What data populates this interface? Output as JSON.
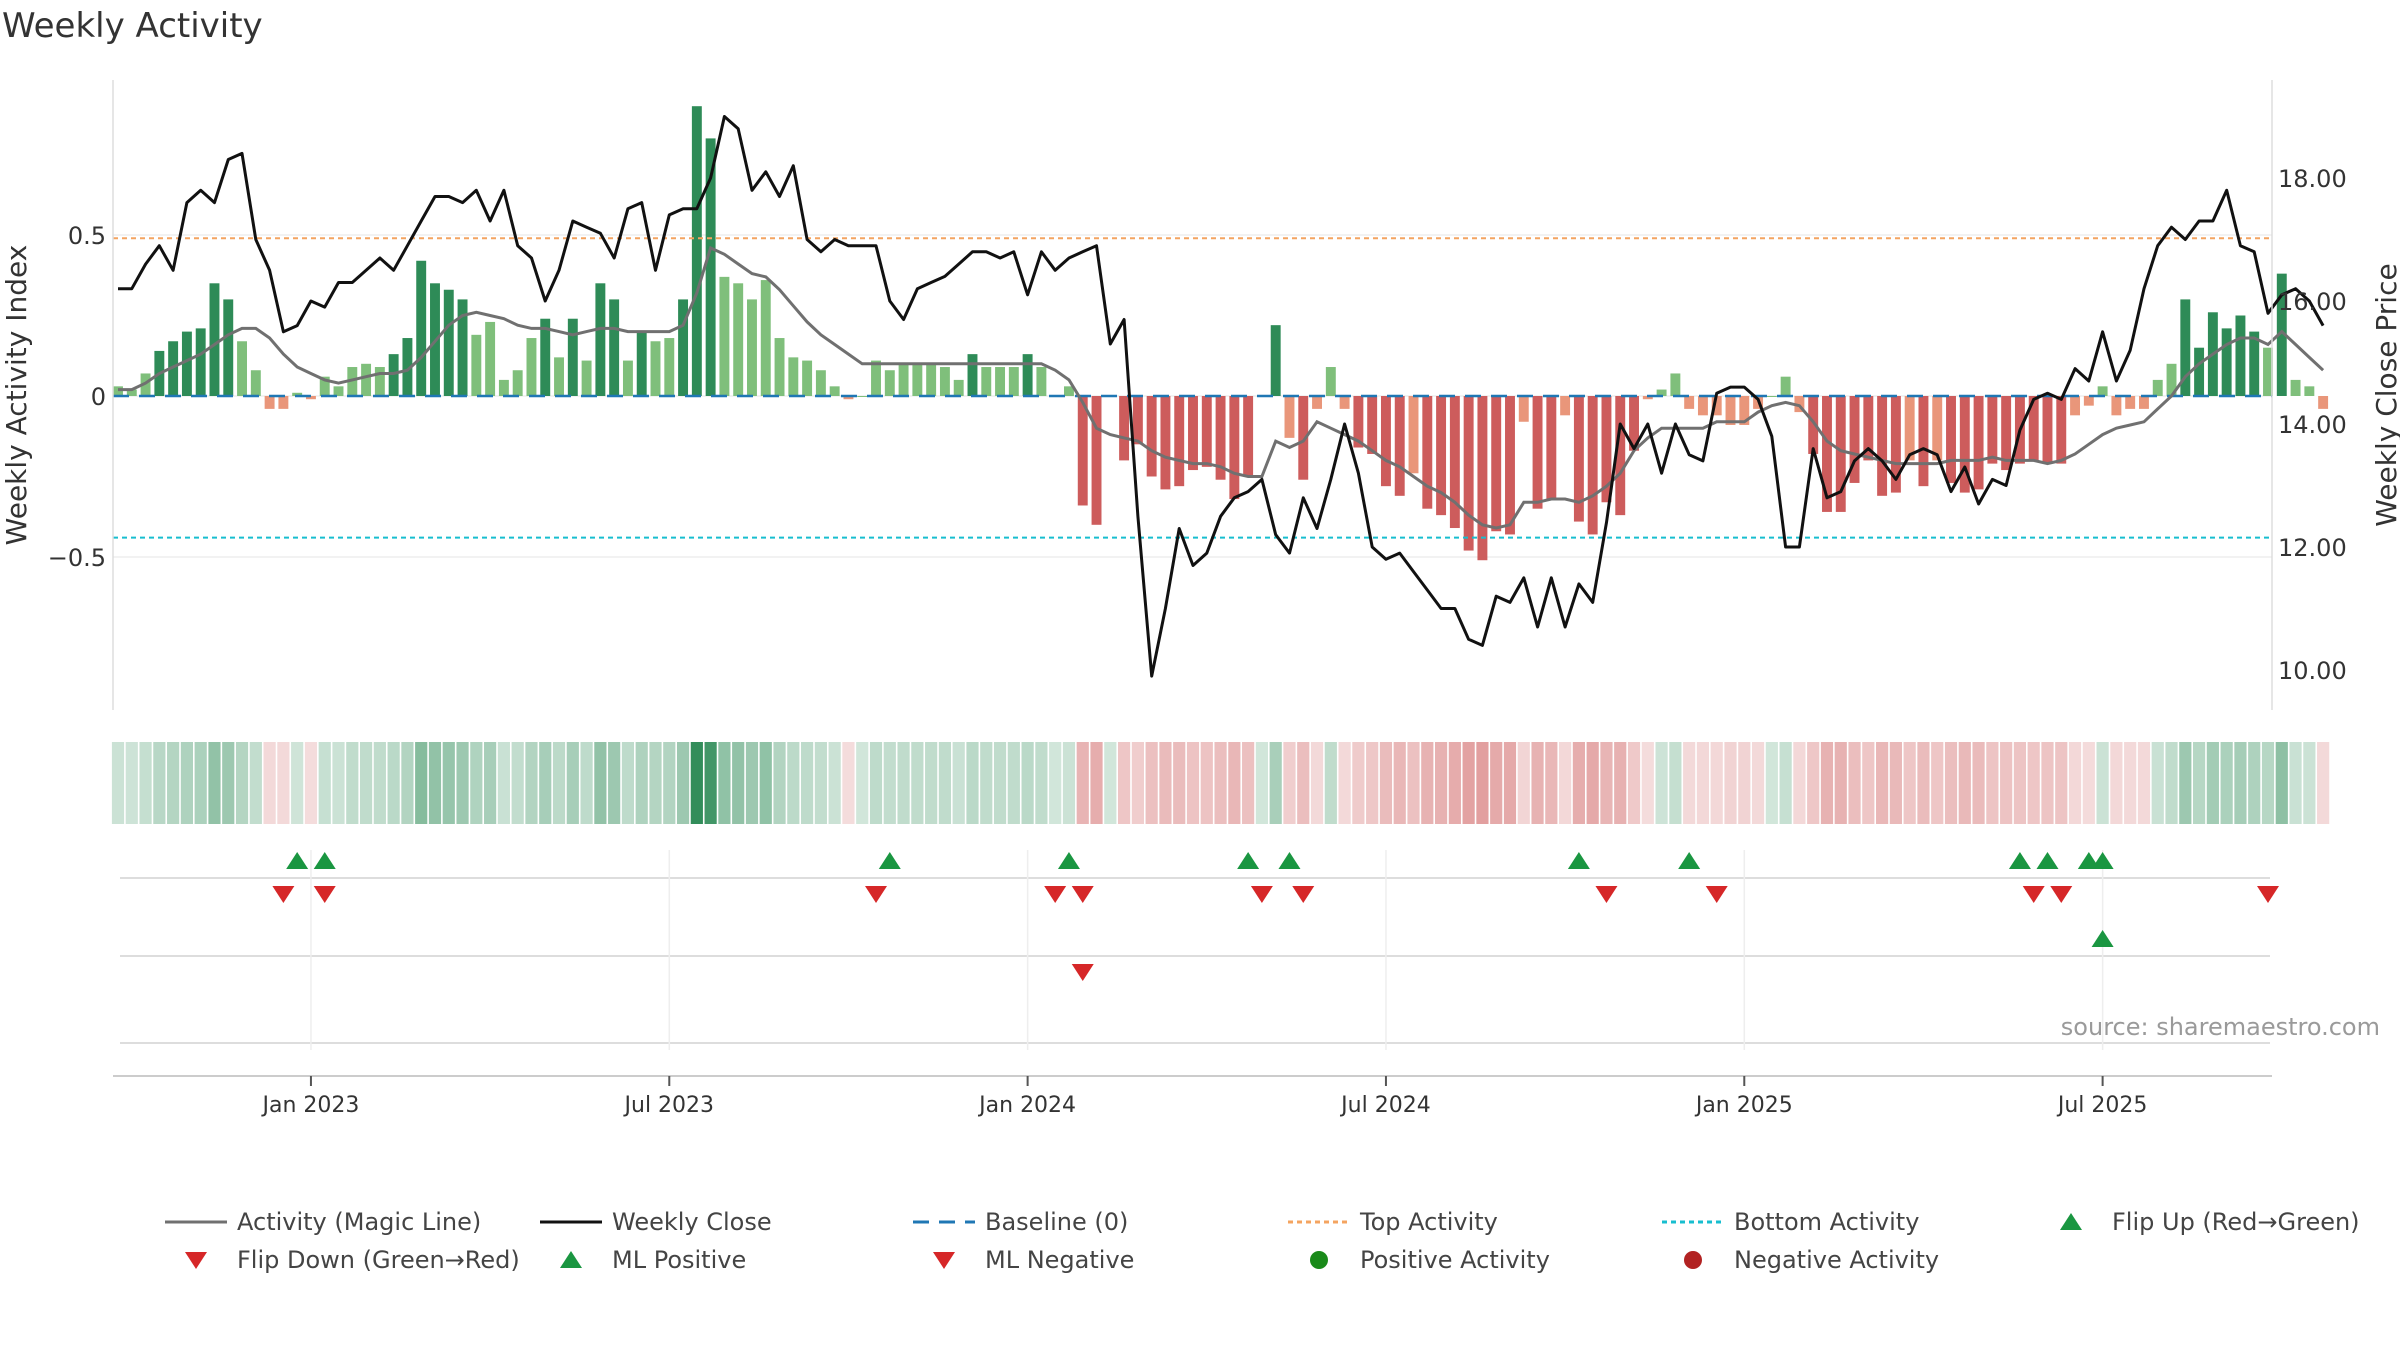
{
  "title": "Weekly Activity",
  "source": "source: sharemaestro.com",
  "colors": {
    "pos_dark": "#2e8b57",
    "pos_light": "#7fbf7b",
    "neg_dark": "#cd5c5c",
    "neg_light": "#e9967a",
    "magic": "#707070",
    "close": "#111111",
    "baseline": "#1f77b4",
    "top": "#f4a460",
    "bottom": "#17becf",
    "flip_up": "#1a9641",
    "flip_down": "#d62728",
    "pos_dot": "#1a8a1a",
    "neg_dot": "#b22222"
  },
  "chart_data": {
    "type": "bar+line",
    "title": "Weekly Activity",
    "ylabel_left": "Weekly Activity Index",
    "ylabel_right": "Weekly Close Price",
    "ylim_left": [
      -0.97,
      1.0
    ],
    "ylim_right": [
      9.0,
      19.4
    ],
    "left_ticks": [
      {
        "v": 0.5,
        "label": "0.5"
      },
      {
        "v": 0,
        "label": "0"
      },
      {
        "v": -0.5,
        "label": "−0.5"
      }
    ],
    "right_ticks": [
      {
        "v": 18,
        "label": "18.00"
      },
      {
        "v": 16,
        "label": "16.00"
      },
      {
        "v": 14,
        "label": "14.00"
      },
      {
        "v": 12,
        "label": "12.00"
      },
      {
        "v": 10,
        "label": "10.00"
      }
    ],
    "x_ticks": [
      {
        "w": 14,
        "label": "Jan 2023"
      },
      {
        "w": 40,
        "label": "Jul 2023"
      },
      {
        "w": 66,
        "label": "Jan 2024"
      },
      {
        "w": 92,
        "label": "Jul 2024"
      },
      {
        "w": 118,
        "label": "Jan 2025"
      },
      {
        "w": 144,
        "label": "Jul 2025"
      }
    ],
    "top_activity": 0.49,
    "bottom_activity": -0.44,
    "baseline": 0,
    "weeks": 157,
    "activity": [
      0.03,
      0.02,
      0.07,
      0.14,
      0.17,
      0.2,
      0.21,
      0.35,
      0.3,
      0.17,
      0.08,
      -0.04,
      -0.04,
      0.01,
      -0.01,
      0.06,
      0.03,
      0.09,
      0.1,
      0.09,
      0.13,
      0.18,
      0.42,
      0.35,
      0.33,
      0.3,
      0.19,
      0.23,
      0.05,
      0.08,
      0.18,
      0.24,
      0.12,
      0.24,
      0.11,
      0.35,
      0.3,
      0.11,
      0.2,
      0.17,
      0.18,
      0.3,
      0.9,
      0.8,
      0.37,
      0.35,
      0.3,
      0.36,
      0.18,
      0.12,
      0.11,
      0.08,
      0.03,
      -0.01,
      0.0,
      0.11,
      0.08,
      0.1,
      0.1,
      0.1,
      0.09,
      0.05,
      0.13,
      0.09,
      0.09,
      0.09,
      0.13,
      0.09,
      0.0,
      0.03,
      -0.34,
      -0.4,
      0.0,
      -0.2,
      -0.15,
      -0.25,
      -0.29,
      -0.28,
      -0.23,
      -0.22,
      -0.26,
      -0.32,
      -0.25,
      0.0,
      0.22,
      -0.13,
      -0.26,
      -0.04,
      0.09,
      -0.04,
      -0.16,
      -0.18,
      -0.28,
      -0.31,
      -0.24,
      -0.35,
      -0.37,
      -0.41,
      -0.48,
      -0.51,
      -0.42,
      -0.43,
      -0.08,
      -0.35,
      -0.32,
      -0.06,
      -0.39,
      -0.43,
      -0.33,
      -0.37,
      -0.17,
      -0.01,
      0.02,
      0.07,
      -0.04,
      -0.06,
      -0.06,
      -0.09,
      -0.09,
      -0.04,
      0.0,
      0.06,
      -0.05,
      -0.18,
      -0.36,
      -0.36,
      -0.27,
      -0.2,
      -0.31,
      -0.3,
      -0.2,
      -0.28,
      -0.2,
      -0.27,
      -0.3,
      -0.29,
      -0.21,
      -0.23,
      -0.21,
      -0.2,
      -0.21,
      -0.21,
      -0.06,
      -0.03,
      0.03,
      -0.06,
      -0.04,
      -0.04,
      0.05,
      0.1,
      0.3,
      0.15,
      0.26,
      0.21,
      0.25,
      0.2,
      0.15,
      0.38,
      0.05,
      0.03,
      -0.04
    ],
    "magic_line": [
      0.02,
      0.02,
      0.04,
      0.07,
      0.09,
      0.11,
      0.13,
      0.16,
      0.19,
      0.21,
      0.21,
      0.18,
      0.13,
      0.09,
      0.07,
      0.05,
      0.04,
      0.05,
      0.06,
      0.07,
      0.07,
      0.08,
      0.12,
      0.17,
      0.22,
      0.25,
      0.26,
      0.25,
      0.24,
      0.22,
      0.21,
      0.21,
      0.2,
      0.19,
      0.2,
      0.21,
      0.21,
      0.2,
      0.2,
      0.2,
      0.2,
      0.22,
      0.32,
      0.46,
      0.44,
      0.41,
      0.38,
      0.37,
      0.33,
      0.28,
      0.23,
      0.19,
      0.16,
      0.13,
      0.1,
      0.1,
      0.1,
      0.1,
      0.1,
      0.1,
      0.1,
      0.1,
      0.1,
      0.1,
      0.1,
      0.1,
      0.1,
      0.1,
      0.08,
      0.05,
      -0.02,
      -0.1,
      -0.12,
      -0.13,
      -0.14,
      -0.17,
      -0.19,
      -0.2,
      -0.21,
      -0.21,
      -0.22,
      -0.24,
      -0.25,
      -0.25,
      -0.14,
      -0.16,
      -0.14,
      -0.08,
      -0.1,
      -0.12,
      -0.14,
      -0.17,
      -0.2,
      -0.22,
      -0.25,
      -0.28,
      -0.3,
      -0.33,
      -0.37,
      -0.4,
      -0.41,
      -0.4,
      -0.33,
      -0.33,
      -0.32,
      -0.32,
      -0.33,
      -0.31,
      -0.28,
      -0.24,
      -0.17,
      -0.13,
      -0.1,
      -0.1,
      -0.1,
      -0.1,
      -0.08,
      -0.08,
      -0.08,
      -0.05,
      -0.03,
      -0.02,
      -0.03,
      -0.08,
      -0.14,
      -0.17,
      -0.18,
      -0.19,
      -0.2,
      -0.21,
      -0.21,
      -0.21,
      -0.21,
      -0.2,
      -0.2,
      -0.2,
      -0.19,
      -0.2,
      -0.2,
      -0.2,
      -0.21,
      -0.2,
      -0.18,
      -0.15,
      -0.12,
      -0.1,
      -0.09,
      -0.08,
      -0.04,
      0.0,
      0.06,
      0.1,
      0.13,
      0.16,
      0.18,
      0.18,
      0.16,
      0.2,
      0.16,
      0.12,
      0.08
    ],
    "weekly_close": [
      16.2,
      16.2,
      16.6,
      16.9,
      16.5,
      17.6,
      17.8,
      17.6,
      18.3,
      18.4,
      17.0,
      16.5,
      15.5,
      15.6,
      16.0,
      15.9,
      16.3,
      16.3,
      16.5,
      16.7,
      16.5,
      16.9,
      17.3,
      17.7,
      17.7,
      17.6,
      17.8,
      17.3,
      17.8,
      16.9,
      16.7,
      16.0,
      16.5,
      17.3,
      17.2,
      17.1,
      16.7,
      17.5,
      17.6,
      16.5,
      17.4,
      17.5,
      17.5,
      18.0,
      19.0,
      18.8,
      17.8,
      18.1,
      17.7,
      18.2,
      17.0,
      16.8,
      17.0,
      16.9,
      16.9,
      16.9,
      16.0,
      15.7,
      16.2,
      16.3,
      16.4,
      16.6,
      16.8,
      16.8,
      16.7,
      16.8,
      16.1,
      16.8,
      16.5,
      16.7,
      16.8,
      16.9,
      15.3,
      15.7,
      12.5,
      9.9,
      11.0,
      12.3,
      11.7,
      11.9,
      12.5,
      12.8,
      12.9,
      13.1,
      12.2,
      11.9,
      12.8,
      12.3,
      13.1,
      14.0,
      13.2,
      12.0,
      11.8,
      11.9,
      11.6,
      11.3,
      11.0,
      11.0,
      10.5,
      10.4,
      11.2,
      11.1,
      11.5,
      10.7,
      11.5,
      10.7,
      11.4,
      11.1,
      12.4,
      14.0,
      13.6,
      14.0,
      13.2,
      14.0,
      13.5,
      13.4,
      14.5,
      14.6,
      14.6,
      14.4,
      13.8,
      12.0,
      12.0,
      13.6,
      12.8,
      12.9,
      13.4,
      13.6,
      13.4,
      13.1,
      13.5,
      13.6,
      13.5,
      12.9,
      13.3,
      12.7,
      13.1,
      13.0,
      13.9,
      14.4,
      14.5,
      14.4,
      14.9,
      14.7,
      15.5,
      14.7,
      15.2,
      16.2,
      16.9,
      17.2,
      17.0,
      17.3,
      17.3,
      17.8,
      16.9,
      16.8,
      15.8,
      16.1,
      16.2,
      16.0,
      15.6
    ],
    "flip_up_weeks": [
      13,
      15,
      56,
      69,
      82,
      85,
      106,
      114,
      138,
      140,
      143,
      144
    ],
    "flip_down_weeks": [
      12,
      15,
      55,
      68,
      70,
      83,
      86,
      108,
      116,
      139,
      141,
      156,
      70
    ]
  },
  "legend": {
    "row1": [
      "Activity (Magic Line)",
      "Weekly Close",
      "Baseline (0)",
      "Top Activity",
      "Bottom Activity",
      "Flip Up (Red→Green)"
    ],
    "row2": [
      "Flip Down (Green→Red)",
      "ML Positive",
      "ML Negative",
      "Positive Activity",
      "Negative Activity"
    ]
  }
}
